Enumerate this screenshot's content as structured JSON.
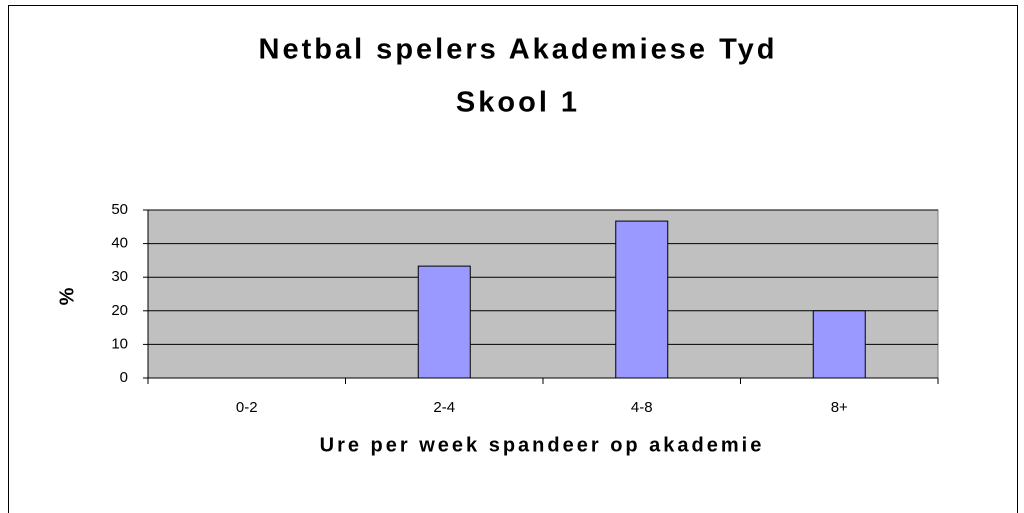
{
  "chart_data": {
    "type": "bar",
    "title": [
      "Netbal spelers Akademiese Tyd",
      "Skool 1"
    ],
    "x_label": "Ure per week spandeer op akademie",
    "y_label": "%",
    "categories": [
      "0-2",
      "2-4",
      "4-8",
      "8+"
    ],
    "values": [
      0,
      33.3,
      46.7,
      20
    ],
    "color": "#9999ff",
    "ylim": [
      0,
      50
    ],
    "yticks": [
      0,
      10,
      20,
      30,
      40,
      50
    ],
    "grid": true,
    "plot_background": "#c0c0c0"
  }
}
